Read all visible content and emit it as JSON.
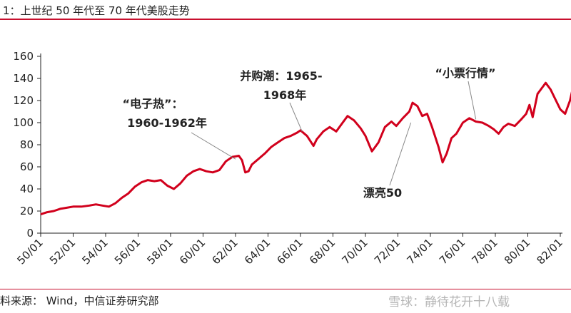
{
  "header": {
    "title": "1：上世纪 50 年代至 70 年代美股走势"
  },
  "footer": {
    "source": "料来源：   Wind，中信证券研究部",
    "watermark": "雪球：静待花开十八载"
  },
  "colors": {
    "accent": "#c8102e",
    "series": "#d1001c",
    "text": "#222222"
  },
  "chart_data": {
    "type": "line",
    "title": "",
    "xlabel": "",
    "ylabel": "",
    "ylim": [
      0,
      160
    ],
    "yticks": [
      0,
      20,
      40,
      60,
      80,
      100,
      120,
      140,
      160
    ],
    "xlim": [
      1950.0,
      1982.0
    ],
    "xticks": [
      {
        "t": 1950,
        "label": "50/01"
      },
      {
        "t": 1952,
        "label": "52/01"
      },
      {
        "t": 1954,
        "label": "54/01"
      },
      {
        "t": 1956,
        "label": "56/01"
      },
      {
        "t": 1958,
        "label": "58/01"
      },
      {
        "t": 1960,
        "label": "60/01"
      },
      {
        "t": 1962,
        "label": "62/01"
      },
      {
        "t": 1964,
        "label": "64/01"
      },
      {
        "t": 1966,
        "label": "66/01"
      },
      {
        "t": 1968,
        "label": "68/01"
      },
      {
        "t": 1970,
        "label": "70/01"
      },
      {
        "t": 1972,
        "label": "72/01"
      },
      {
        "t": 1974,
        "label": "74/01"
      },
      {
        "t": 1976,
        "label": "76/01"
      },
      {
        "t": 1978,
        "label": "78/01"
      },
      {
        "t": 1980,
        "label": "80/01"
      },
      {
        "t": 1982,
        "label": "82/01"
      }
    ],
    "grid": false,
    "legend": "none",
    "series": [
      {
        "points": [
          [
            1950.0,
            17
          ],
          [
            1950.4,
            19
          ],
          [
            1950.8,
            20
          ],
          [
            1951.2,
            22
          ],
          [
            1951.6,
            23
          ],
          [
            1952.0,
            24
          ],
          [
            1952.5,
            24
          ],
          [
            1953.0,
            25
          ],
          [
            1953.4,
            26
          ],
          [
            1953.8,
            25
          ],
          [
            1954.2,
            24
          ],
          [
            1954.6,
            27
          ],
          [
            1955.0,
            32
          ],
          [
            1955.4,
            36
          ],
          [
            1955.8,
            42
          ],
          [
            1956.2,
            46
          ],
          [
            1956.6,
            48
          ],
          [
            1957.0,
            47
          ],
          [
            1957.4,
            48
          ],
          [
            1957.8,
            43
          ],
          [
            1958.2,
            40
          ],
          [
            1958.6,
            45
          ],
          [
            1959.0,
            52
          ],
          [
            1959.4,
            56
          ],
          [
            1959.8,
            58
          ],
          [
            1960.2,
            56
          ],
          [
            1960.6,
            55
          ],
          [
            1961.0,
            57
          ],
          [
            1961.4,
            65
          ],
          [
            1961.8,
            69
          ],
          [
            1962.2,
            70
          ],
          [
            1962.4,
            66
          ],
          [
            1962.6,
            55
          ],
          [
            1962.8,
            56
          ],
          [
            1963.0,
            62
          ],
          [
            1963.4,
            67
          ],
          [
            1963.8,
            72
          ],
          [
            1964.2,
            78
          ],
          [
            1964.6,
            82
          ],
          [
            1965.0,
            86
          ],
          [
            1965.4,
            88
          ],
          [
            1965.8,
            91
          ],
          [
            1966.0,
            93
          ],
          [
            1966.4,
            88
          ],
          [
            1966.8,
            79
          ],
          [
            1967.0,
            85
          ],
          [
            1967.4,
            92
          ],
          [
            1967.8,
            96
          ],
          [
            1968.2,
            92
          ],
          [
            1968.6,
            100
          ],
          [
            1968.9,
            106
          ],
          [
            1969.3,
            102
          ],
          [
            1969.7,
            95
          ],
          [
            1970.0,
            88
          ],
          [
            1970.4,
            74
          ],
          [
            1970.8,
            82
          ],
          [
            1971.2,
            96
          ],
          [
            1971.6,
            101
          ],
          [
            1971.9,
            97
          ],
          [
            1972.3,
            104
          ],
          [
            1972.7,
            110
          ],
          [
            1972.9,
            118
          ],
          [
            1973.2,
            115
          ],
          [
            1973.5,
            106
          ],
          [
            1973.8,
            108
          ],
          [
            1974.1,
            96
          ],
          [
            1974.5,
            78
          ],
          [
            1974.75,
            64
          ],
          [
            1975.0,
            72
          ],
          [
            1975.3,
            86
          ],
          [
            1975.6,
            90
          ],
          [
            1976.0,
            100
          ],
          [
            1976.4,
            104
          ],
          [
            1976.8,
            101
          ],
          [
            1977.2,
            100
          ],
          [
            1977.6,
            97
          ],
          [
            1977.9,
            94
          ],
          [
            1978.2,
            90
          ],
          [
            1978.5,
            96
          ],
          [
            1978.8,
            99
          ],
          [
            1979.2,
            97
          ],
          [
            1979.6,
            103
          ],
          [
            1979.9,
            108
          ],
          [
            1980.1,
            116
          ],
          [
            1980.3,
            105
          ],
          [
            1980.6,
            126
          ],
          [
            1980.9,
            132
          ],
          [
            1981.1,
            136
          ],
          [
            1981.4,
            130
          ],
          [
            1981.7,
            121
          ],
          [
            1982.0,
            112
          ],
          [
            1982.3,
            108
          ],
          [
            1982.6,
            120
          ],
          [
            1982.8,
            133
          ],
          [
            1982.9,
            142
          ],
          [
            1983.0,
            140
          ]
        ]
      }
    ],
    "annotations": [
      {
        "lines": [
          "“电子热”：",
          "1960-1962年"
        ],
        "target": [
          1962.0,
          67
        ]
      },
      {
        "lines": [
          "并购潮：1965-",
          "1968年"
        ],
        "target": [
          1966.1,
          92
        ]
      },
      {
        "lines": [
          "漂亮50"
        ],
        "target": [
          1972.8,
          100
        ]
      },
      {
        "lines": [
          "“小票行情”"
        ],
        "target": [
          1976.8,
          103
        ]
      }
    ]
  }
}
